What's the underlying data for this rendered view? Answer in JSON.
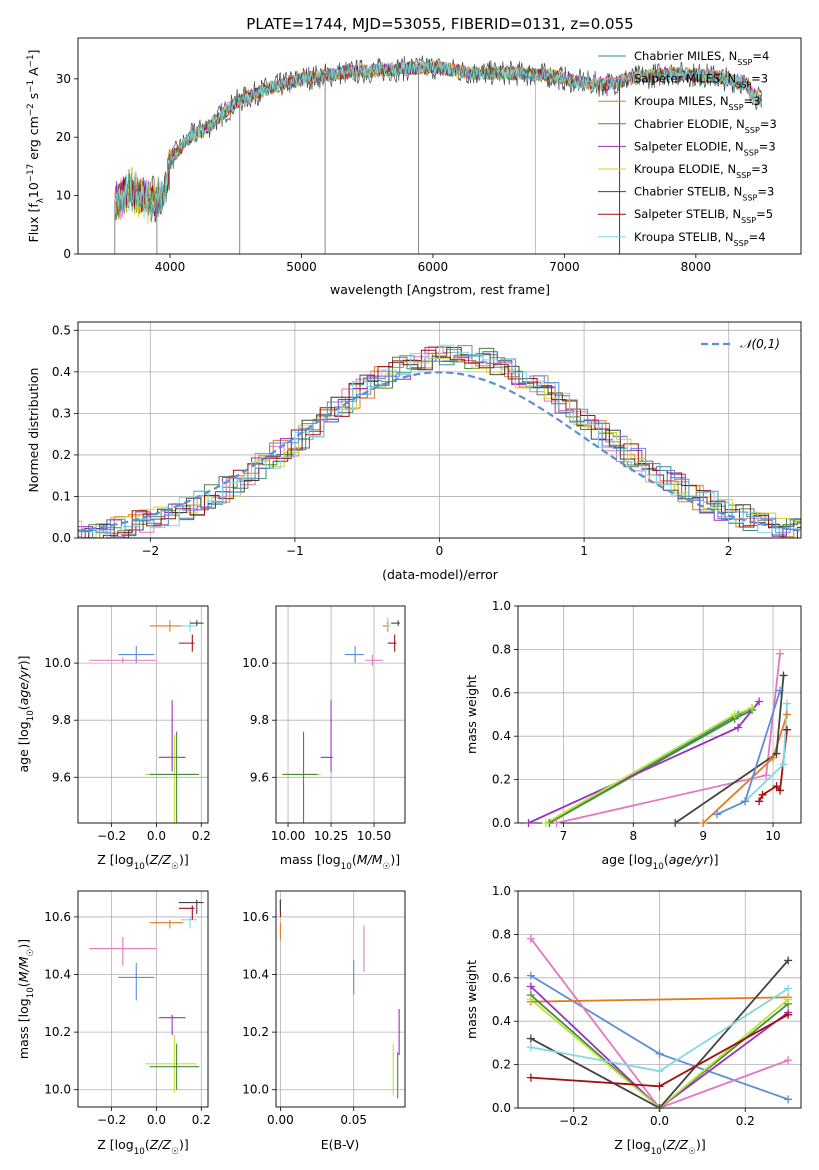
{
  "figure_title": "PLATE=1744, MJD=53055, FIBERID=0131, z=0.055",
  "colors": {
    "Chabrier MILES": "#3a8f85",
    "Salpeter MILES": "#e377c2",
    "Kroupa MILES": "#e07b1f",
    "Chabrier ELODIE": "#4a8a3a",
    "Salpeter ELODIE": "#9b30c0",
    "Kroupa ELODIE": "#d4d030",
    "Chabrier STELIB": "#444444",
    "Salpeter STELIB": "#a01010",
    "Kroupa STELIB": "#7fd8e0",
    "cornflower": "#5a8fd8",
    "lime": "#b8e63a"
  },
  "chart_data": [
    {
      "type": "line",
      "id": "spectrum",
      "title": "PLATE=1744, MJD=53055, FIBERID=0131, z=0.055",
      "xlabel": "wavelength [Angstrom, rest frame]",
      "ylabel": "Flux [fλ10⁻¹⁷ erg cm⁻² s⁻¹ A⁻¹]",
      "xlim": [
        3300,
        8800
      ],
      "ylim": [
        0,
        37
      ],
      "xticks": [
        4000,
        5000,
        6000,
        7000,
        8000
      ],
      "yticks": [
        0,
        10,
        20,
        30
      ],
      "grid": false,
      "legend_position": "top-right",
      "legend": [
        "Chabrier MILES, N_SSP=4",
        "Salpeter MILES, N_SSP=3",
        "Kroupa MILES, N_SSP=3",
        "Chabrier ELODIE, N_SSP=3",
        "Salpeter ELODIE, N_SSP=3",
        "Kroupa ELODIE, N_SSP=3",
        "Chabrier STELIB, N_SSP=3",
        "Salpeter STELIB, N_SSP=5",
        "Kroupa STELIB, N_SSP=4"
      ],
      "continuum_x": [
        3580,
        3700,
        3850,
        3950,
        4000,
        4150,
        4300,
        4500,
        4700,
        5000,
        5300,
        5600,
        6000,
        6300,
        6600,
        6900,
        7100,
        7300,
        7500,
        7800,
        8100,
        8350,
        8500
      ],
      "continuum_y": [
        9,
        11,
        9,
        10,
        16,
        20,
        22,
        26,
        28,
        30,
        31,
        31.5,
        32,
        31,
        31,
        30.5,
        29.5,
        29,
        30,
        31,
        30.5,
        29.5,
        26
      ],
      "emission_drops_x": [
        3580,
        3900,
        4530,
        5180,
        5890,
        6780,
        7420
      ]
    },
    {
      "type": "histogram",
      "id": "residuals",
      "xlabel": "(data-model)/error",
      "ylabel": "Normed distribution",
      "xlim": [
        -2.5,
        2.5
      ],
      "ylim": [
        0,
        0.52
      ],
      "xticks": [
        -2,
        -1,
        0,
        1,
        2
      ],
      "yticks": [
        0.0,
        0.1,
        0.2,
        0.3,
        0.4,
        0.5
      ],
      "grid": true,
      "legend_position": "top-right",
      "legend": [
        "𝒩(0,1)"
      ],
      "bin_width": 0.1,
      "reference_curve": "gaussian mean 0 sigma 1"
    },
    {
      "type": "scatter",
      "id": "age-vs-Z",
      "xlabel": "Z [log10(Z/Z☉)]",
      "ylabel": "age  [log10(age/yr)]",
      "xlim": [
        -0.35,
        0.23
      ],
      "ylim": [
        9.44,
        10.2
      ],
      "xticks": [
        -0.2,
        0.0,
        0.2
      ],
      "yticks": [
        9.6,
        9.8,
        10.0
      ],
      "grid": true,
      "points": [
        {
          "color": "cornflower",
          "x": -0.09,
          "y": 10.03,
          "xerr": [
            0.08,
            0.08
          ],
          "yerr": [
            0.03,
            0.03
          ]
        },
        {
          "color": "Salpeter MILES",
          "x": -0.15,
          "y": 10.01,
          "xerr": [
            0.15,
            0.15
          ],
          "yerr": [
            0.01,
            0.01
          ]
        },
        {
          "color": "Kroupa MILES",
          "x": 0.06,
          "y": 10.13,
          "xerr": [
            0.09,
            0.06
          ],
          "yerr": [
            0.02,
            0.02
          ]
        },
        {
          "color": "Kroupa STELIB",
          "x": 0.15,
          "y": 10.13,
          "xerr": [
            0.04,
            0.03
          ],
          "yerr": [
            0.02,
            0.02
          ]
        },
        {
          "color": "Chabrier STELIB",
          "x": 0.18,
          "y": 10.14,
          "xerr": [
            0.03,
            0.03
          ],
          "yerr": [
            0.01,
            0.01
          ]
        },
        {
          "color": "Salpeter STELIB",
          "x": 0.16,
          "y": 10.07,
          "xerr": [
            0.06,
            0.01
          ],
          "yerr": [
            0.03,
            0.03
          ]
        },
        {
          "color": "Salpeter ELODIE",
          "x": 0.07,
          "y": 9.67,
          "xerr": [
            0.06,
            0.06
          ],
          "yerr": [
            0.05,
            0.2
          ]
        },
        {
          "color": "lime",
          "x": 0.08,
          "y": 9.61,
          "xerr": [
            0.13,
            0.1
          ],
          "yerr": [
            0.22,
            0.14
          ]
        },
        {
          "color": "Chabrier ELODIE",
          "x": 0.09,
          "y": 9.61,
          "xerr": [
            0.12,
            0.1
          ],
          "yerr": [
            0.2,
            0.15
          ]
        }
      ]
    },
    {
      "type": "scatter",
      "id": "age-vs-mass",
      "xlabel": "mass [log10(M/M☉)]",
      "ylabel": "",
      "xlim": [
        9.93,
        10.68
      ],
      "ylim": [
        9.44,
        10.2
      ],
      "xticks": [
        10.0,
        10.25,
        10.5
      ],
      "yticks": [
        9.6,
        9.8,
        10.0
      ],
      "grid": true,
      "points": [
        {
          "color": "cornflower",
          "x": 10.39,
          "y": 10.03,
          "xerr": [
            0.06,
            0.05
          ],
          "yerr": [
            0.03,
            0.03
          ]
        },
        {
          "color": "Salpeter MILES",
          "x": 10.49,
          "y": 10.01,
          "xerr": [
            0.04,
            0.06
          ],
          "yerr": [
            0.02,
            0.02
          ]
        },
        {
          "color": "Kroupa MILES",
          "x": 10.58,
          "y": 10.13,
          "xerr": [
            0.03,
            0.01
          ],
          "yerr": [
            0.02,
            0.02
          ]
        },
        {
          "color": "Kroupa STELIB",
          "x": 10.58,
          "y": 10.14,
          "xerr": [
            0.01,
            0.01
          ],
          "yerr": [
            0.02,
            0.02
          ]
        },
        {
          "color": "Chabrier STELIB",
          "x": 10.64,
          "y": 10.14,
          "xerr": [
            0.04,
            0.01
          ],
          "yerr": [
            0.01,
            0.01
          ]
        },
        {
          "color": "Salpeter STELIB",
          "x": 10.62,
          "y": 10.07,
          "xerr": [
            0.04,
            0.01
          ],
          "yerr": [
            0.03,
            0.03
          ]
        },
        {
          "color": "Salpeter ELODIE",
          "x": 10.25,
          "y": 9.67,
          "xerr": [
            0.06,
            0.01
          ],
          "yerr": [
            0.05,
            0.2
          ]
        },
        {
          "color": "lime",
          "x": 10.09,
          "y": 9.61,
          "xerr": [
            0.13,
            0.1
          ],
          "yerr": [
            0.22,
            0.14
          ]
        },
        {
          "color": "Chabrier ELODIE",
          "x": 10.09,
          "y": 9.61,
          "xerr": [
            0.12,
            0.08
          ],
          "yerr": [
            0.2,
            0.15
          ]
        }
      ]
    },
    {
      "type": "line",
      "id": "mass-weight-vs-age",
      "xlabel": "age  [log10(age/yr)]",
      "ylabel": "mass weight",
      "xlim": [
        6.35,
        10.4
      ],
      "ylim": [
        0,
        1.0
      ],
      "xticks": [
        7,
        8,
        9,
        10
      ],
      "yticks": [
        0.0,
        0.2,
        0.4,
        0.6,
        0.8,
        1.0
      ],
      "grid": true,
      "series": [
        {
          "color": "Chabrier MILES",
          "x": [
            6.8,
            9.5,
            9.7
          ],
          "y": [
            0.0,
            0.5,
            0.53
          ]
        },
        {
          "color": "Salpeter MILES",
          "x": [
            6.9,
            9.9,
            10.1
          ],
          "y": [
            0.0,
            0.22,
            0.78
          ]
        },
        {
          "color": "Kroupa MILES",
          "x": [
            9.0,
            10.0,
            10.2
          ],
          "y": [
            0.0,
            0.3,
            0.5
          ]
        },
        {
          "color": "Chabrier ELODIE",
          "x": [
            6.8,
            9.45,
            9.7
          ],
          "y": [
            0.0,
            0.48,
            0.52
          ]
        },
        {
          "color": "Salpeter ELODIE",
          "x": [
            6.5,
            9.5,
            9.8
          ],
          "y": [
            0.0,
            0.44,
            0.56
          ]
        },
        {
          "color": "lime",
          "x": [
            6.75,
            9.45,
            9.7
          ],
          "y": [
            0.0,
            0.5,
            0.53
          ]
        },
        {
          "color": "Chabrier STELIB",
          "x": [
            8.6,
            10.05,
            10.15
          ],
          "y": [
            0.0,
            0.32,
            0.68
          ]
        },
        {
          "color": "Salpeter STELIB",
          "x": [
            9.8,
            9.85,
            10.05,
            10.1,
            10.2
          ],
          "y": [
            0.1,
            0.13,
            0.17,
            0.15,
            0.43
          ]
        },
        {
          "color": "Kroupa STELIB",
          "x": [
            9.6,
            10.15,
            10.2
          ],
          "y": [
            0.1,
            0.27,
            0.55
          ]
        },
        {
          "color": "cornflower",
          "x": [
            9.2,
            9.6,
            10.1
          ],
          "y": [
            0.04,
            0.1,
            0.61
          ]
        }
      ]
    },
    {
      "type": "scatter",
      "id": "mass-vs-Z",
      "xlabel": "Z [log10(Z/Z☉)]",
      "ylabel": "mass [log10(M/M☉)]",
      "xlim": [
        -0.35,
        0.23
      ],
      "ylim": [
        9.94,
        10.69
      ],
      "xticks": [
        -0.2,
        0.0,
        0.2
      ],
      "yticks": [
        10.0,
        10.2,
        10.4,
        10.6
      ],
      "grid": true,
      "points": [
        {
          "color": "cornflower",
          "x": -0.09,
          "y": 10.39,
          "xerr": [
            0.08,
            0.08
          ],
          "yerr": [
            0.08,
            0.05
          ]
        },
        {
          "color": "Salpeter MILES",
          "x": -0.15,
          "y": 10.49,
          "xerr": [
            0.15,
            0.15
          ],
          "yerr": [
            0.06,
            0.04
          ]
        },
        {
          "color": "Kroupa MILES",
          "x": 0.06,
          "y": 10.58,
          "xerr": [
            0.09,
            0.06
          ],
          "yerr": [
            0.02,
            0.01
          ]
        },
        {
          "color": "Kroupa STELIB",
          "x": 0.15,
          "y": 10.59,
          "xerr": [
            0.04,
            0.03
          ],
          "yerr": [
            0.03,
            0.01
          ]
        },
        {
          "color": "Chabrier STELIB",
          "x": 0.18,
          "y": 10.65,
          "xerr": [
            0.08,
            0.03
          ],
          "yerr": [
            0.04,
            0.01
          ]
        },
        {
          "color": "Salpeter STELIB",
          "x": 0.16,
          "y": 10.63,
          "xerr": [
            0.06,
            0.01
          ],
          "yerr": [
            0.04,
            0.01
          ]
        },
        {
          "color": "Salpeter ELODIE",
          "x": 0.07,
          "y": 10.25,
          "xerr": [
            0.06,
            0.06
          ],
          "yerr": [
            0.06,
            0.01
          ]
        },
        {
          "color": "lime",
          "x": 0.08,
          "y": 10.09,
          "xerr": [
            0.13,
            0.1
          ],
          "yerr": [
            0.1,
            0.1
          ]
        },
        {
          "color": "Chabrier ELODIE",
          "x": 0.09,
          "y": 10.08,
          "xerr": [
            0.12,
            0.1
          ],
          "yerr": [
            0.08,
            0.08
          ]
        }
      ]
    },
    {
      "type": "scatter",
      "id": "mass-vs-EBV",
      "xlabel": "E(B-V)",
      "ylabel": "",
      "xlim": [
        -0.003,
        0.085
      ],
      "ylim": [
        9.94,
        10.69
      ],
      "xticks": [
        0.0,
        0.05
      ],
      "yticks": [
        10.0,
        10.2,
        10.4,
        10.6
      ],
      "grid": true,
      "points": [
        {
          "color": "Salpeter STELIB",
          "x": 0.0,
          "y": 10.63,
          "xerr": [
            0,
            0
          ],
          "yerr": [
            0.03,
            0.03
          ]
        },
        {
          "color": "Kroupa MILES",
          "x": 0.0,
          "y": 10.55,
          "xerr": [
            0,
            0
          ],
          "yerr": [
            0.03,
            0.03
          ]
        },
        {
          "color": "Chabrier STELIB",
          "x": 0.0,
          "y": 10.64,
          "xerr": [
            0,
            0
          ],
          "yerr": [
            0.02,
            0.02
          ]
        },
        {
          "color": "cornflower",
          "x": 0.05,
          "y": 10.39,
          "xerr": [
            0,
            0
          ],
          "yerr": [
            0.06,
            0.06
          ]
        },
        {
          "color": "Salpeter MILES",
          "x": 0.057,
          "y": 10.49,
          "xerr": [
            0,
            0
          ],
          "yerr": [
            0.08,
            0.08
          ]
        },
        {
          "color": "Salpeter ELODIE",
          "x": 0.081,
          "y": 10.2,
          "xerr": [
            0,
            0
          ],
          "yerr": [
            0.08,
            0.08
          ]
        },
        {
          "color": "lime",
          "x": 0.077,
          "y": 10.07,
          "xerr": [
            0,
            0
          ],
          "yerr": [
            0.09,
            0.09
          ]
        },
        {
          "color": "Chabrier ELODIE",
          "x": 0.08,
          "y": 10.05,
          "xerr": [
            0,
            0
          ],
          "yerr": [
            0.08,
            0.08
          ]
        }
      ]
    },
    {
      "type": "line",
      "id": "mass-weight-vs-Z",
      "xlabel": "Z [log10(Z/Z☉)]",
      "ylabel": "mass weight",
      "xlim": [
        -0.33,
        0.33
      ],
      "ylim": [
        0,
        1.0
      ],
      "xticks": [
        -0.2,
        0.0,
        0.2
      ],
      "yticks": [
        0.0,
        0.2,
        0.4,
        0.6,
        0.8,
        1.0
      ],
      "grid": true,
      "series": [
        {
          "color": "cornflower",
          "x": [
            -0.3,
            0.0,
            0.3
          ],
          "y": [
            0.61,
            0.25,
            0.04
          ]
        },
        {
          "color": "Salpeter MILES",
          "x": [
            -0.3,
            0.0,
            0.3
          ],
          "y": [
            0.78,
            0.0,
            0.22
          ]
        },
        {
          "color": "Kroupa MILES",
          "x": [
            -0.3,
            0.3
          ],
          "y": [
            0.49,
            0.51
          ]
        },
        {
          "color": "Chabrier ELODIE",
          "x": [
            -0.3,
            0.0,
            0.3
          ],
          "y": [
            0.52,
            0.0,
            0.48
          ]
        },
        {
          "color": "Salpeter ELODIE",
          "x": [
            -0.3,
            0.0,
            0.3
          ],
          "y": [
            0.56,
            0.0,
            0.44
          ]
        },
        {
          "color": "lime",
          "x": [
            -0.3,
            0.0,
            0.3
          ],
          "y": [
            0.5,
            0.0,
            0.5
          ]
        },
        {
          "color": "Chabrier STELIB",
          "x": [
            -0.3,
            0.0,
            0.3
          ],
          "y": [
            0.32,
            0.0,
            0.68
          ]
        },
        {
          "color": "Salpeter STELIB",
          "x": [
            -0.3,
            0.0,
            0.3
          ],
          "y": [
            0.14,
            0.1,
            0.43
          ]
        },
        {
          "color": "Kroupa STELIB",
          "x": [
            -0.3,
            0.0,
            0.3
          ],
          "y": [
            0.28,
            0.17,
            0.55
          ]
        }
      ]
    }
  ]
}
